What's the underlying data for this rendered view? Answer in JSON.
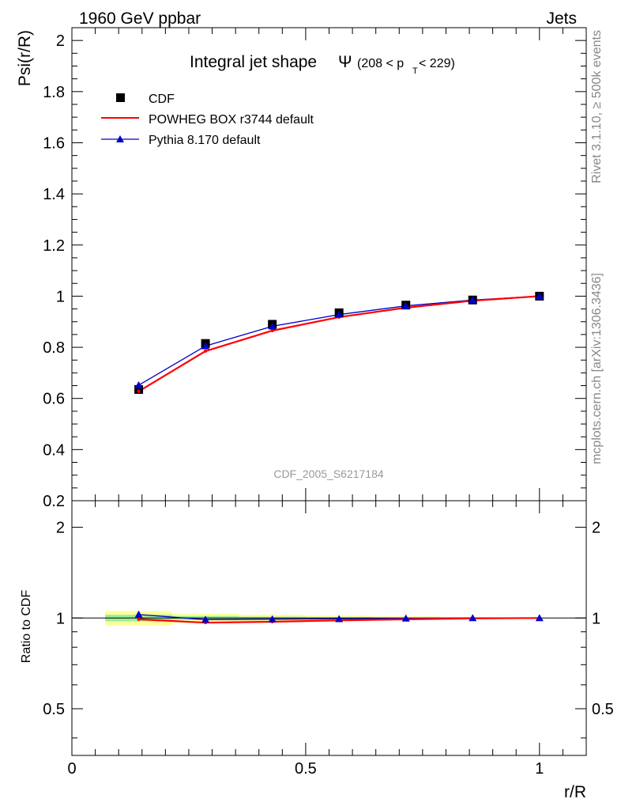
{
  "header": {
    "left": "1960 GeV ppbar",
    "right": "Jets"
  },
  "side_labels": {
    "rivet": "Rivet 3.1.10, ≥ 500k events",
    "mcplots": "mcplots.cern.ch [arXiv:1306.3436]"
  },
  "chart_data": [
    {
      "type": "scatter",
      "title_main": "Integral jet shape",
      "title_symbol": "Ψ",
      "title_range": "(208 < p",
      "title_sub": "T",
      "title_range_end": " < 229)",
      "ylabel": "Psi(r/R)",
      "analysis_label": "CDF_2005_S6217184",
      "xlim": [
        0,
        1.1
      ],
      "ylim": [
        0.2,
        2.05
      ],
      "yticks": [
        0.2,
        0.4,
        0.6,
        0.8,
        1,
        1.2,
        1.4,
        1.6,
        1.8,
        2
      ],
      "ytick_labels": [
        "0.2",
        "0.4",
        "0.6",
        "0.8",
        "1",
        "1.2",
        "1.4",
        "1.6",
        "1.8",
        "2"
      ],
      "legend_position": "top-left",
      "x": [
        0.1429,
        0.2857,
        0.4286,
        0.5714,
        0.7143,
        0.8571,
        1.0
      ],
      "series": [
        {
          "name": "CDF",
          "kind": "data",
          "color": "#000000",
          "values": [
            0.635,
            0.815,
            0.89,
            0.935,
            0.965,
            0.985,
            1.0
          ]
        },
        {
          "name": "POWHEG BOX r3744 default",
          "kind": "line",
          "color": "#ff0000",
          "values": [
            0.628,
            0.785,
            0.865,
            0.918,
            0.955,
            0.982,
            1.0
          ]
        },
        {
          "name": "Pythia 8.170 default",
          "kind": "line-triangle",
          "color": "#0000cc",
          "values": [
            0.652,
            0.805,
            0.882,
            0.928,
            0.962,
            0.985,
            1.0
          ]
        }
      ]
    },
    {
      "type": "line",
      "ylabel": "Ratio to CDF",
      "xlabel": "r/R",
      "xlim": [
        0,
        1.1
      ],
      "xticks": [
        0,
        0.5,
        1
      ],
      "xtick_labels": [
        "0",
        "0.5",
        "1"
      ],
      "ylim": [
        0.35,
        2.45
      ],
      "yticks_labeled": [
        0.5,
        1,
        2
      ],
      "ytick_labels": [
        "0.5",
        "1",
        "2"
      ],
      "x": [
        0.1429,
        0.2857,
        0.4286,
        0.5714,
        0.7143,
        0.8571,
        1.0
      ],
      "band_colors": {
        "outer": "#ffff99",
        "inner": "#99ee99"
      },
      "data_band_outer": [
        {
          "x0": 0.0714,
          "x1": 0.2143,
          "lo": 0.945,
          "hi": 1.055
        },
        {
          "x0": 0.2143,
          "x1": 0.3571,
          "lo": 0.965,
          "hi": 1.035
        },
        {
          "x0": 0.3571,
          "x1": 0.5,
          "lo": 0.975,
          "hi": 1.025
        },
        {
          "x0": 0.5,
          "x1": 0.6429,
          "lo": 0.982,
          "hi": 1.018
        },
        {
          "x0": 0.6429,
          "x1": 0.7857,
          "lo": 0.988,
          "hi": 1.012
        },
        {
          "x0": 0.7857,
          "x1": 0.9286,
          "lo": 0.993,
          "hi": 1.007
        },
        {
          "x0": 0.9286,
          "x1": 1.0714,
          "lo": 0.998,
          "hi": 1.002
        }
      ],
      "data_band_inner": [
        {
          "x0": 0.0714,
          "x1": 0.2143,
          "lo": 0.975,
          "hi": 1.025
        },
        {
          "x0": 0.2143,
          "x1": 0.3571,
          "lo": 0.985,
          "hi": 1.015
        },
        {
          "x0": 0.3571,
          "x1": 0.5,
          "lo": 0.99,
          "hi": 1.01
        },
        {
          "x0": 0.5,
          "x1": 0.6429,
          "lo": 0.993,
          "hi": 1.007
        },
        {
          "x0": 0.6429,
          "x1": 0.7857,
          "lo": 0.995,
          "hi": 1.005
        },
        {
          "x0": 0.7857,
          "x1": 0.9286,
          "lo": 0.997,
          "hi": 1.003
        },
        {
          "x0": 0.9286,
          "x1": 1.0714,
          "lo": 0.999,
          "hi": 1.001
        }
      ],
      "series": [
        {
          "name": "POWHEG BOX r3744 default",
          "color": "#ff0000",
          "values": [
            0.99,
            0.965,
            0.972,
            0.982,
            0.99,
            0.997,
            1.0
          ]
        },
        {
          "name": "Pythia 8.170 default",
          "color": "#0000cc",
          "values": [
            1.027,
            0.988,
            0.991,
            0.993,
            0.997,
            1.0,
            1.0
          ]
        }
      ]
    }
  ]
}
